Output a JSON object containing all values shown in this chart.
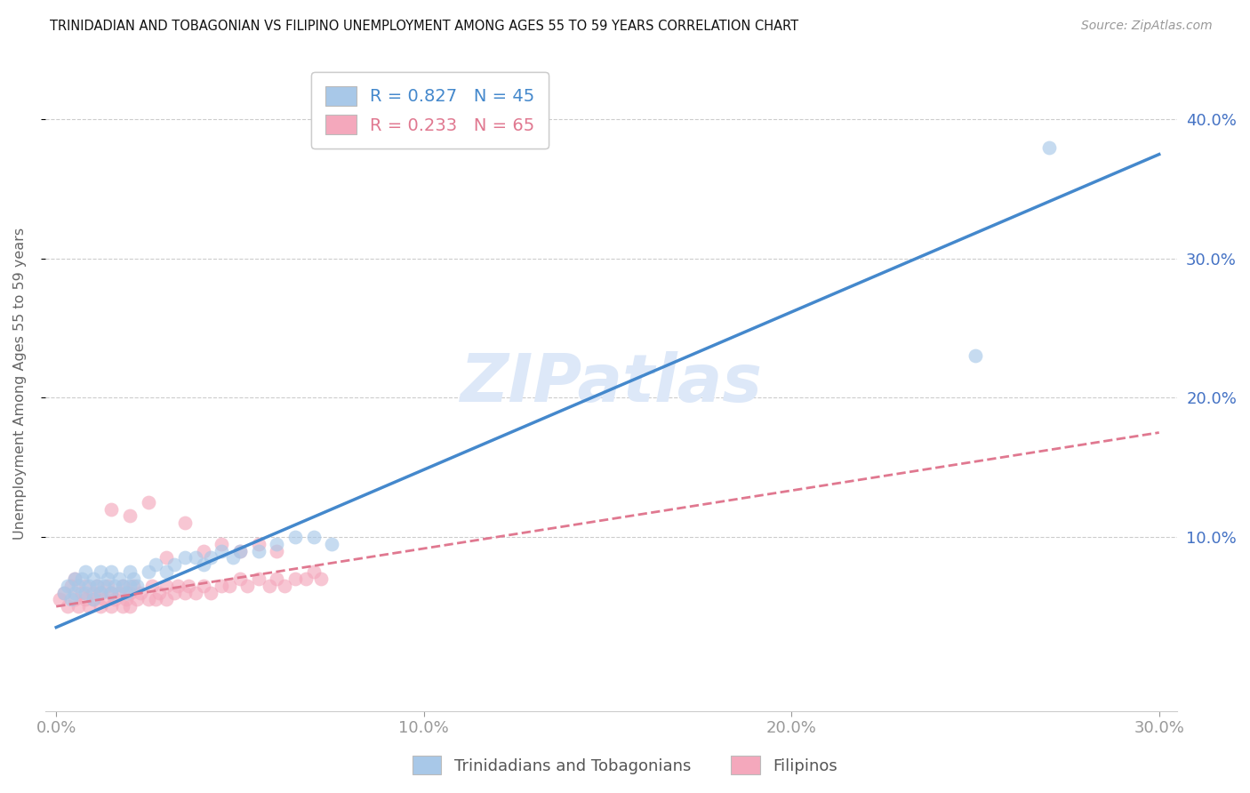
{
  "title": "TRINIDADIAN AND TOBAGONIAN VS FILIPINO UNEMPLOYMENT AMONG AGES 55 TO 59 YEARS CORRELATION CHART",
  "source": "Source: ZipAtlas.com",
  "ylabel": "Unemployment Among Ages 55 to 59 years",
  "x_tick_labels": [
    "0.0%",
    "10.0%",
    "20.0%",
    "30.0%"
  ],
  "x_tick_positions": [
    0.0,
    0.1,
    0.2,
    0.3
  ],
  "y_tick_labels": [
    "10.0%",
    "20.0%",
    "30.0%",
    "40.0%"
  ],
  "y_tick_positions": [
    0.1,
    0.2,
    0.3,
    0.4
  ],
  "xlim": [
    -0.003,
    0.305
  ],
  "ylim": [
    -0.025,
    0.445
  ],
  "legend_label1": "R = 0.827   N = 45",
  "legend_label2": "R = 0.233   N = 65",
  "legend_bottom_label1": "Trinidadians and Tobagonians",
  "legend_bottom_label2": "Filipinos",
  "blue_color": "#a8c8e8",
  "pink_color": "#f4a8bc",
  "blue_line_color": "#4488cc",
  "pink_line_color": "#e07890",
  "axis_label_color": "#4472c4",
  "watermark_text": "ZIPatlas",
  "watermark_color": "#dde8f8",
  "background_color": "#ffffff",
  "blue_line_x0": 0.0,
  "blue_line_y0": 0.035,
  "blue_line_x1": 0.3,
  "blue_line_y1": 0.375,
  "pink_line_x0": 0.0,
  "pink_line_y0": 0.05,
  "pink_line_x1": 0.3,
  "pink_line_y1": 0.175,
  "blue_scatter_x": [
    0.002,
    0.003,
    0.004,
    0.005,
    0.005,
    0.006,
    0.007,
    0.008,
    0.008,
    0.009,
    0.01,
    0.01,
    0.011,
    0.012,
    0.012,
    0.013,
    0.014,
    0.015,
    0.015,
    0.016,
    0.017,
    0.018,
    0.019,
    0.02,
    0.02,
    0.021,
    0.022,
    0.025,
    0.027,
    0.03,
    0.032,
    0.035,
    0.038,
    0.04,
    0.042,
    0.045,
    0.048,
    0.05,
    0.055,
    0.06,
    0.065,
    0.07,
    0.075,
    0.25,
    0.27
  ],
  "blue_scatter_y": [
    0.06,
    0.065,
    0.055,
    0.07,
    0.06,
    0.065,
    0.07,
    0.06,
    0.075,
    0.065,
    0.055,
    0.07,
    0.065,
    0.06,
    0.075,
    0.065,
    0.07,
    0.06,
    0.075,
    0.065,
    0.07,
    0.065,
    0.06,
    0.075,
    0.065,
    0.07,
    0.065,
    0.075,
    0.08,
    0.075,
    0.08,
    0.085,
    0.085,
    0.08,
    0.085,
    0.09,
    0.085,
    0.09,
    0.09,
    0.095,
    0.1,
    0.1,
    0.095,
    0.23,
    0.38
  ],
  "pink_scatter_x": [
    0.001,
    0.002,
    0.003,
    0.004,
    0.005,
    0.005,
    0.006,
    0.007,
    0.008,
    0.008,
    0.009,
    0.01,
    0.01,
    0.011,
    0.012,
    0.012,
    0.013,
    0.014,
    0.015,
    0.015,
    0.016,
    0.017,
    0.018,
    0.018,
    0.019,
    0.02,
    0.02,
    0.021,
    0.022,
    0.023,
    0.025,
    0.026,
    0.027,
    0.028,
    0.03,
    0.03,
    0.032,
    0.033,
    0.035,
    0.036,
    0.038,
    0.04,
    0.042,
    0.045,
    0.047,
    0.05,
    0.052,
    0.055,
    0.058,
    0.06,
    0.062,
    0.065,
    0.068,
    0.07,
    0.072,
    0.015,
    0.02,
    0.025,
    0.03,
    0.035,
    0.04,
    0.045,
    0.05,
    0.055,
    0.06
  ],
  "pink_scatter_y": [
    0.055,
    0.06,
    0.05,
    0.065,
    0.055,
    0.07,
    0.05,
    0.06,
    0.055,
    0.065,
    0.05,
    0.06,
    0.055,
    0.065,
    0.05,
    0.06,
    0.055,
    0.065,
    0.05,
    0.06,
    0.055,
    0.06,
    0.05,
    0.065,
    0.055,
    0.06,
    0.05,
    0.065,
    0.055,
    0.06,
    0.055,
    0.065,
    0.055,
    0.06,
    0.055,
    0.065,
    0.06,
    0.065,
    0.06,
    0.065,
    0.06,
    0.065,
    0.06,
    0.065,
    0.065,
    0.07,
    0.065,
    0.07,
    0.065,
    0.07,
    0.065,
    0.07,
    0.07,
    0.075,
    0.07,
    0.12,
    0.115,
    0.125,
    0.085,
    0.11,
    0.09,
    0.095,
    0.09,
    0.095,
    0.09
  ],
  "grid_color": "#cccccc",
  "tick_color": "#4472c4"
}
